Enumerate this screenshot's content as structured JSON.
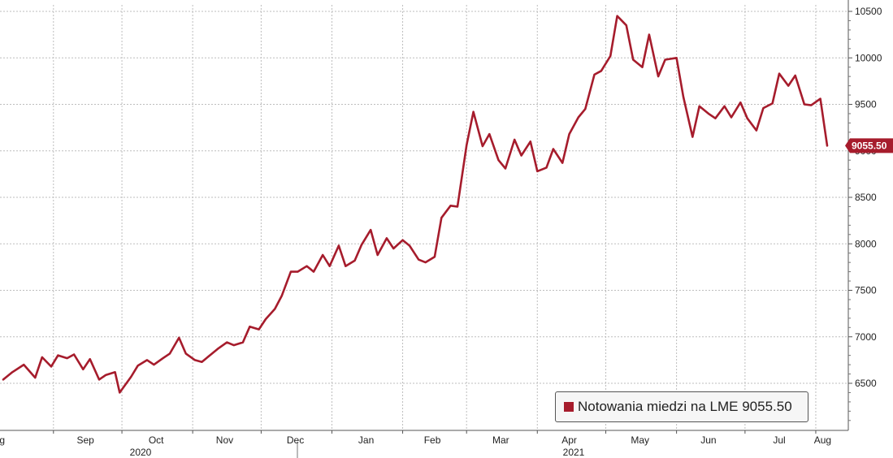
{
  "chart_data": {
    "type": "line",
    "title": "",
    "xlabel": "",
    "ylabel": "",
    "ylim": [
      6000,
      10500
    ],
    "yticks": [
      6500,
      7000,
      7500,
      8000,
      8500,
      9000,
      9500,
      10000,
      10500
    ],
    "x_ticks": [
      "g",
      "Sep",
      "Oct",
      "Nov",
      "Dec",
      "Jan",
      "Feb",
      "Mar",
      "Apr",
      "May",
      "Jun",
      "Jul",
      "Aug"
    ],
    "x_years": [
      "2020",
      "2021"
    ],
    "grid": true,
    "legend_position": "bottom-right",
    "last_value_label": "9055.50",
    "series": [
      {
        "name": "Notowania miedzi na LME 9055.50",
        "color": "#a61c2c",
        "x": [
          "2020-08-10",
          "2020-08-14",
          "2020-08-19",
          "2020-08-24",
          "2020-08-27",
          "2020-08-31",
          "2020-09-03",
          "2020-09-07",
          "2020-09-10",
          "2020-09-14",
          "2020-09-17",
          "2020-09-21",
          "2020-09-24",
          "2020-09-28",
          "2020-09-30",
          "2020-10-05",
          "2020-10-08",
          "2020-10-12",
          "2020-10-15",
          "2020-10-19",
          "2020-10-22",
          "2020-10-26",
          "2020-10-29",
          "2020-11-02",
          "2020-11-05",
          "2020-11-09",
          "2020-11-12",
          "2020-11-16",
          "2020-11-19",
          "2020-11-23",
          "2020-11-26",
          "2020-11-30",
          "2020-12-03",
          "2020-12-07",
          "2020-12-10",
          "2020-12-14",
          "2020-12-17",
          "2020-12-21",
          "2020-12-24",
          "2020-12-28",
          "2020-12-31",
          "2021-01-04",
          "2021-01-07",
          "2021-01-11",
          "2021-01-14",
          "2021-01-18",
          "2021-01-21",
          "2021-01-25",
          "2021-01-28",
          "2021-02-01",
          "2021-02-04",
          "2021-02-08",
          "2021-02-11",
          "2021-02-15",
          "2021-02-18",
          "2021-02-22",
          "2021-02-25",
          "2021-03-01",
          "2021-03-04",
          "2021-03-08",
          "2021-03-11",
          "2021-03-15",
          "2021-03-18",
          "2021-03-22",
          "2021-03-25",
          "2021-03-29",
          "2021-04-01",
          "2021-04-05",
          "2021-04-08",
          "2021-04-12",
          "2021-04-15",
          "2021-04-19",
          "2021-04-22",
          "2021-04-26",
          "2021-04-29",
          "2021-05-03",
          "2021-05-06",
          "2021-05-10",
          "2021-05-13",
          "2021-05-17",
          "2021-05-20",
          "2021-05-24",
          "2021-05-27",
          "2021-06-01",
          "2021-06-04",
          "2021-06-08",
          "2021-06-11",
          "2021-06-15",
          "2021-06-18",
          "2021-06-22",
          "2021-06-25",
          "2021-06-29",
          "2021-07-02",
          "2021-07-06",
          "2021-07-09",
          "2021-07-13",
          "2021-07-16",
          "2021-07-20",
          "2021-07-23",
          "2021-07-27",
          "2021-07-30",
          "2021-08-03",
          "2021-08-06"
        ],
        "values": [
          6540,
          6620,
          6700,
          6560,
          6780,
          6680,
          6800,
          6770,
          6810,
          6650,
          6760,
          6540,
          6590,
          6620,
          6400,
          6570,
          6690,
          6750,
          6700,
          6770,
          6820,
          6990,
          6820,
          6750,
          6730,
          6810,
          6870,
          6940,
          6910,
          6940,
          7110,
          7080,
          7190,
          7300,
          7440,
          7700,
          7700,
          7760,
          7700,
          7880,
          7760,
          7980,
          7760,
          7820,
          7990,
          8150,
          7880,
          8060,
          7950,
          8040,
          7980,
          7830,
          7800,
          7860,
          8280,
          8410,
          8400,
          9060,
          9420,
          9050,
          9180,
          8900,
          8810,
          9120,
          8950,
          9100,
          8780,
          8820,
          9020,
          8870,
          9180,
          9360,
          9450,
          9820,
          9860,
          10020,
          10450,
          10350,
          9980,
          9900,
          10250,
          9800,
          9980,
          10000,
          9580,
          9150,
          9480,
          9400,
          9350,
          9480,
          9360,
          9520,
          9350,
          9220,
          9460,
          9510,
          9830,
          9700,
          9810,
          9500,
          9490,
          9560,
          9055.5
        ]
      }
    ]
  }
}
